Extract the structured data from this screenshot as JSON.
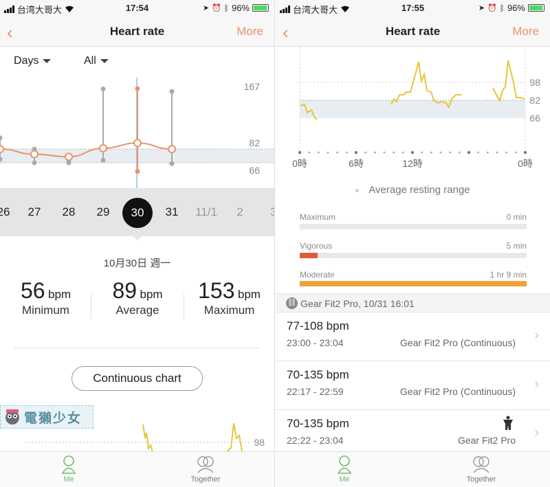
{
  "left": {
    "status": {
      "carrier": "台湾大哥大",
      "time": "17:54",
      "battery": "96%"
    },
    "nav": {
      "back": "‹",
      "title": "Heart rate",
      "more": "More"
    },
    "filters": {
      "period": "Days",
      "type": "All"
    },
    "chart_data": {
      "type": "line",
      "y_ticks": [
        "167",
        "82",
        "66"
      ],
      "resting_range": [
        66,
        82
      ],
      "x": [
        "26",
        "27",
        "28",
        "29",
        "30",
        "31"
      ],
      "series": [
        {
          "values": [
            82,
            76,
            73,
            83,
            89,
            82
          ]
        }
      ],
      "min": [
        70,
        66,
        66,
        69,
        56,
        65
      ],
      "max": [
        95,
        82,
        68,
        152,
        153,
        149
      ]
    },
    "days": [
      "26",
      "27",
      "28",
      "29",
      "30",
      "31",
      "11/1",
      "2",
      "3"
    ],
    "selected_day": "30",
    "date_label": "10月30日 週一",
    "stats": [
      {
        "value": "56",
        "unit": "bpm",
        "label": "Minimum"
      },
      {
        "value": "89",
        "unit": "bpm",
        "label": "Average"
      },
      {
        "value": "153",
        "unit": "bpm",
        "label": "Maximum"
      }
    ],
    "continuous_button": "Continuous chart",
    "watermark": "電獺少女",
    "bottom_tick": "98",
    "tabs": {
      "me": "Me",
      "together": "Together"
    }
  },
  "right": {
    "status": {
      "carrier": "台湾大哥大",
      "time": "17:55",
      "battery": "96%"
    },
    "nav": {
      "back": "‹",
      "title": "Heart rate",
      "more": "More"
    },
    "chart_data": {
      "type": "line",
      "y_ticks": [
        "98",
        "82",
        "66"
      ],
      "x_ticks": [
        "0時",
        "6時",
        "12時",
        "0時"
      ],
      "resting_range": [
        66,
        82
      ],
      "legend": "Average resting range"
    },
    "intensity": [
      {
        "label": "Maximum",
        "time": "0 min",
        "fraction": 0,
        "color": "#e9e9e9"
      },
      {
        "label": "Vigorous",
        "time": "5 min",
        "fraction": 0.08,
        "color": "#e05a3a"
      },
      {
        "label": "Moderate",
        "time": "1 hr 9 min",
        "fraction": 1.0,
        "color": "#eca33c"
      }
    ],
    "source": "Gear Fit2 Pro, 10/31 16:01",
    "records": [
      {
        "range": "77-108 bpm",
        "time": "23:00 - 23:04",
        "device": "Gear Fit2 Pro (Continuous)",
        "workout": false
      },
      {
        "range": "70-135 bpm",
        "time": "22:17 - 22:59",
        "device": "Gear Fit2 Pro (Continuous)",
        "workout": false
      },
      {
        "range": "70-135 bpm",
        "time": "22:22 - 23:04",
        "device": "Gear Fit2 Pro",
        "workout": true
      }
    ],
    "tabs": {
      "me": "Me",
      "together": "Together"
    }
  },
  "colors": {
    "accent": "#e8936a",
    "line_yellow": "#e8c53a",
    "tab_green": "#6bbf6b"
  }
}
